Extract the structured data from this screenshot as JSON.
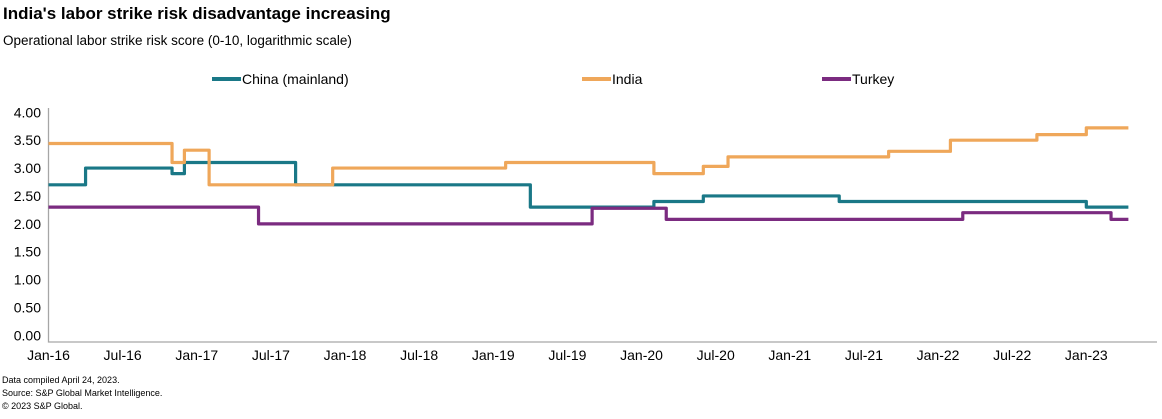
{
  "header": {
    "title": "India's labor strike risk disadvantage increasing",
    "subtitle": "Operational labor strike risk score (0-10, logarithmic scale)"
  },
  "footer": {
    "line1": "Data compiled April 24, 2023.",
    "line2": "Source: S&P Global Market Intelligence.",
    "line3": "© 2023 S&P Global."
  },
  "chart_data": {
    "type": "line",
    "subtype": "step",
    "title": "India's labor strike risk disadvantage increasing",
    "subtitle": "Operational labor strike risk score (0-10, logarithmic scale)",
    "grid": false,
    "legend_position": "top",
    "axis_color": "#a6a6a6",
    "ylim": [
      0,
      4
    ],
    "y_ticks": [
      "4.00",
      "3.50",
      "3.00",
      "2.50",
      "2.00",
      "1.50",
      "1.00",
      "0.50",
      "0.00"
    ],
    "x_ticks": [
      "Jan-16",
      "Jul-16",
      "Jan-17",
      "Jul-17",
      "Jan-18",
      "Jul-18",
      "Jan-19",
      "Jul-19",
      "Jan-20",
      "Jul-20",
      "Jan-21",
      "Jul-21",
      "Jan-22",
      "Jul-22",
      "Jan-23"
    ],
    "x_start": "2016-01",
    "x_end": "2023-04",
    "series": [
      {
        "name": "China (mainland)",
        "color": "#1a7887",
        "steps": [
          [
            "2016-01",
            2.7
          ],
          [
            "2016-04",
            3.0
          ],
          [
            "2016-11",
            2.9
          ],
          [
            "2016-12",
            3.1
          ],
          [
            "2017-09",
            2.7
          ],
          [
            "2019-04",
            2.3
          ],
          [
            "2020-02",
            2.4
          ],
          [
            "2020-06",
            2.5
          ],
          [
            "2021-05",
            2.4
          ],
          [
            "2023-01",
            2.3
          ]
        ]
      },
      {
        "name": "India",
        "color": "#efa75a",
        "steps": [
          [
            "2016-01",
            3.44
          ],
          [
            "2016-11",
            3.1
          ],
          [
            "2016-12",
            3.32
          ],
          [
            "2017-02",
            2.7
          ],
          [
            "2017-12",
            3.0
          ],
          [
            "2019-02",
            3.1
          ],
          [
            "2020-02",
            2.9
          ],
          [
            "2020-06",
            3.03
          ],
          [
            "2020-08",
            3.2
          ],
          [
            "2021-09",
            3.3
          ],
          [
            "2022-02",
            3.5
          ],
          [
            "2022-09",
            3.6
          ],
          [
            "2023-01",
            3.72
          ]
        ]
      },
      {
        "name": "Turkey",
        "color": "#7b2b80",
        "steps": [
          [
            "2016-01",
            2.3
          ],
          [
            "2017-06",
            2.0
          ],
          [
            "2019-09",
            2.28
          ],
          [
            "2020-03",
            2.08
          ],
          [
            "2022-03",
            2.2
          ],
          [
            "2023-03",
            2.08
          ]
        ]
      }
    ]
  }
}
